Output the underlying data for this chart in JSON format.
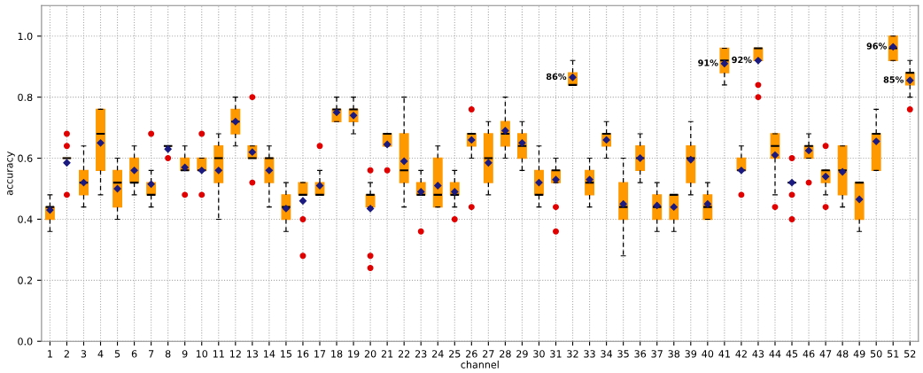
{
  "chart_data": {
    "type": "box",
    "xlabel": "channel",
    "ylabel": "accuracy",
    "categories": [
      "1",
      "2",
      "3",
      "4",
      "5",
      "6",
      "7",
      "8",
      "9",
      "10",
      "11",
      "12",
      "13",
      "14",
      "15",
      "16",
      "17",
      "18",
      "19",
      "20",
      "21",
      "22",
      "23",
      "24",
      "25",
      "26",
      "27",
      "28",
      "29",
      "30",
      "31",
      "32",
      "33",
      "34",
      "35",
      "36",
      "37",
      "38",
      "39",
      "40",
      "41",
      "42",
      "43",
      "44",
      "45",
      "46",
      "47",
      "48",
      "49",
      "50",
      "51",
      "52"
    ],
    "ylim": [
      0,
      1.1
    ],
    "yticks": [
      {
        "value": 0,
        "label": "0.0"
      },
      {
        "value": 0.2,
        "label": "0.2"
      },
      {
        "value": 0.4,
        "label": "0.4"
      },
      {
        "value": 0.6,
        "label": "0.6"
      },
      {
        "value": 0.8,
        "label": "0.8"
      },
      {
        "value": 1.0,
        "label": "1.0"
      }
    ],
    "grid": true,
    "color": "#ff9900",
    "boxes": [
      {
        "low": 0.36,
        "q1": 0.4,
        "median": 0.44,
        "q3": 0.44,
        "high": 0.48,
        "mean": 0.43
      },
      {
        "low": 0.6,
        "q1": 0.6,
        "median": 0.6,
        "q3": 0.6,
        "high": 0.6,
        "mean": 0.585,
        "outliers": [
          0.68,
          0.64,
          0.48
        ]
      },
      {
        "low": 0.44,
        "q1": 0.48,
        "median": 0.52,
        "q3": 0.56,
        "high": 0.64,
        "mean": 0.52
      },
      {
        "low": 0.48,
        "q1": 0.56,
        "median": 0.68,
        "q3": 0.76,
        "high": 0.76,
        "mean": 0.65
      },
      {
        "low": 0.4,
        "q1": 0.44,
        "median": 0.52,
        "q3": 0.56,
        "high": 0.6,
        "mean": 0.5
      },
      {
        "low": 0.48,
        "q1": 0.52,
        "median": 0.52,
        "q3": 0.6,
        "high": 0.64,
        "mean": 0.56
      },
      {
        "low": 0.44,
        "q1": 0.48,
        "median": 0.48,
        "q3": 0.52,
        "high": 0.56,
        "mean": 0.515,
        "outliers": [
          0.68
        ]
      },
      {
        "low": 0.64,
        "q1": 0.64,
        "median": 0.64,
        "q3": 0.64,
        "high": 0.64,
        "mean": 0.63,
        "outliers": [
          0.6
        ]
      },
      {
        "low": 0.56,
        "q1": 0.56,
        "median": 0.56,
        "q3": 0.6,
        "high": 0.64,
        "mean": 0.57,
        "outliers": [
          0.48
        ]
      },
      {
        "low": 0.56,
        "q1": 0.56,
        "median": 0.56,
        "q3": 0.6,
        "high": 0.6,
        "mean": 0.56,
        "outliers": [
          0.68,
          0.48
        ]
      },
      {
        "low": 0.4,
        "q1": 0.52,
        "median": 0.6,
        "q3": 0.64,
        "high": 0.68,
        "mean": 0.56
      },
      {
        "low": 0.64,
        "q1": 0.68,
        "median": 0.72,
        "q3": 0.76,
        "high": 0.8,
        "mean": 0.72
      },
      {
        "low": 0.6,
        "q1": 0.6,
        "median": 0.6,
        "q3": 0.64,
        "high": 0.64,
        "mean": 0.62,
        "outliers": [
          0.8,
          0.52
        ]
      },
      {
        "low": 0.44,
        "q1": 0.52,
        "median": 0.6,
        "q3": 0.6,
        "high": 0.64,
        "mean": 0.56
      },
      {
        "low": 0.36,
        "q1": 0.4,
        "median": 0.44,
        "q3": 0.48,
        "high": 0.52,
        "mean": 0.435
      },
      {
        "low": 0.48,
        "q1": 0.48,
        "median": 0.48,
        "q3": 0.52,
        "high": 0.52,
        "mean": 0.46,
        "outliers": [
          0.4,
          0.28
        ]
      },
      {
        "low": 0.48,
        "q1": 0.48,
        "median": 0.48,
        "q3": 0.52,
        "high": 0.56,
        "mean": 0.51,
        "outliers": [
          0.64
        ]
      },
      {
        "low": 0.72,
        "q1": 0.72,
        "median": 0.76,
        "q3": 0.76,
        "high": 0.8,
        "mean": 0.75
      },
      {
        "low": 0.68,
        "q1": 0.72,
        "median": 0.76,
        "q3": 0.76,
        "high": 0.8,
        "mean": 0.74
      },
      {
        "low": 0.44,
        "q1": 0.44,
        "median": 0.48,
        "q3": 0.48,
        "high": 0.52,
        "mean": 0.435,
        "outliers": [
          0.56,
          0.28,
          0.24
        ]
      },
      {
        "low": 0.64,
        "q1": 0.64,
        "median": 0.68,
        "q3": 0.68,
        "high": 0.68,
        "mean": 0.645,
        "outliers": [
          0.56
        ]
      },
      {
        "low": 0.44,
        "q1": 0.52,
        "median": 0.56,
        "q3": 0.68,
        "high": 0.8,
        "mean": 0.59
      },
      {
        "low": 0.48,
        "q1": 0.48,
        "median": 0.48,
        "q3": 0.52,
        "high": 0.56,
        "mean": 0.49,
        "outliers": [
          0.36
        ]
      },
      {
        "low": 0.44,
        "q1": 0.44,
        "median": 0.48,
        "q3": 0.6,
        "high": 0.64,
        "mean": 0.51
      },
      {
        "low": 0.44,
        "q1": 0.48,
        "median": 0.48,
        "q3": 0.52,
        "high": 0.56,
        "mean": 0.49,
        "outliers": [
          0.4
        ]
      },
      {
        "low": 0.6,
        "q1": 0.64,
        "median": 0.68,
        "q3": 0.68,
        "high": 0.68,
        "mean": 0.66,
        "outliers": [
          0.76,
          0.44
        ]
      },
      {
        "low": 0.48,
        "q1": 0.52,
        "median": 0.6,
        "q3": 0.68,
        "high": 0.72,
        "mean": 0.585
      },
      {
        "low": 0.6,
        "q1": 0.64,
        "median": 0.68,
        "q3": 0.72,
        "high": 0.8,
        "mean": 0.69
      },
      {
        "low": 0.56,
        "q1": 0.6,
        "median": 0.64,
        "q3": 0.68,
        "high": 0.72,
        "mean": 0.65
      },
      {
        "low": 0.44,
        "q1": 0.48,
        "median": 0.48,
        "q3": 0.56,
        "high": 0.64,
        "mean": 0.52
      },
      {
        "low": 0.52,
        "q1": 0.52,
        "median": 0.56,
        "q3": 0.56,
        "high": 0.6,
        "mean": 0.53,
        "outliers": [
          0.44,
          0.36
        ]
      },
      {
        "low": 0.84,
        "q1": 0.84,
        "median": 0.84,
        "q3": 0.88,
        "high": 0.92,
        "mean": 0.865
      },
      {
        "low": 0.44,
        "q1": 0.48,
        "median": 0.52,
        "q3": 0.56,
        "high": 0.6,
        "mean": 0.53
      },
      {
        "low": 0.6,
        "q1": 0.64,
        "median": 0.68,
        "q3": 0.68,
        "high": 0.72,
        "mean": 0.66
      },
      {
        "low": 0.28,
        "q1": 0.4,
        "median": 0.44,
        "q3": 0.52,
        "high": 0.6,
        "mean": 0.45
      },
      {
        "low": 0.52,
        "q1": 0.56,
        "median": 0.6,
        "q3": 0.64,
        "high": 0.68,
        "mean": 0.6
      },
      {
        "low": 0.36,
        "q1": 0.4,
        "median": 0.44,
        "q3": 0.48,
        "high": 0.52,
        "mean": 0.445
      },
      {
        "low": 0.36,
        "q1": 0.4,
        "median": 0.48,
        "q3": 0.48,
        "high": 0.48,
        "mean": 0.44
      },
      {
        "low": 0.48,
        "q1": 0.52,
        "median": 0.6,
        "q3": 0.64,
        "high": 0.72,
        "mean": 0.595
      },
      {
        "low": 0.4,
        "q1": 0.4,
        "median": 0.44,
        "q3": 0.48,
        "high": 0.52,
        "mean": 0.45
      },
      {
        "low": 0.84,
        "q1": 0.88,
        "median": 0.92,
        "q3": 0.96,
        "high": 0.96,
        "mean": 0.91
      },
      {
        "low": 0.56,
        "q1": 0.56,
        "median": 0.56,
        "q3": 0.6,
        "high": 0.64,
        "mean": 0.56,
        "outliers": [
          0.48
        ]
      },
      {
        "low": 0.92,
        "q1": 0.92,
        "median": 0.96,
        "q3": 0.96,
        "high": 0.96,
        "mean": 0.92,
        "outliers": [
          0.84,
          0.8
        ]
      },
      {
        "low": 0.48,
        "q1": 0.6,
        "median": 0.64,
        "q3": 0.68,
        "high": 0.68,
        "mean": 0.61,
        "outliers": [
          0.44
        ]
      },
      {
        "low": 0.52,
        "q1": 0.52,
        "median": 0.52,
        "q3": 0.52,
        "high": 0.52,
        "mean": 0.52,
        "outliers": [
          0.6,
          0.48,
          0.4
        ]
      },
      {
        "low": 0.6,
        "q1": 0.6,
        "median": 0.64,
        "q3": 0.64,
        "high": 0.68,
        "mean": 0.625,
        "outliers": [
          0.52
        ]
      },
      {
        "low": 0.48,
        "q1": 0.52,
        "median": 0.56,
        "q3": 0.56,
        "high": 0.56,
        "mean": 0.54,
        "outliers": [
          0.64,
          0.44
        ]
      },
      {
        "low": 0.44,
        "q1": 0.48,
        "median": 0.56,
        "q3": 0.64,
        "high": 0.64,
        "mean": 0.555
      },
      {
        "low": 0.36,
        "q1": 0.4,
        "median": 0.52,
        "q3": 0.52,
        "high": 0.52,
        "mean": 0.465
      },
      {
        "low": 0.56,
        "q1": 0.56,
        "median": 0.68,
        "q3": 0.68,
        "high": 0.76,
        "mean": 0.655
      },
      {
        "low": 0.92,
        "q1": 0.92,
        "median": 0.96,
        "q3": 1.0,
        "high": 1.0,
        "mean": 0.965
      },
      {
        "low": 0.8,
        "q1": 0.84,
        "median": 0.88,
        "q3": 0.88,
        "high": 0.92,
        "mean": 0.855,
        "outliers": [
          0.76
        ]
      }
    ],
    "annotations": [
      {
        "text": "86%",
        "x": "32",
        "y": 0.865
      },
      {
        "text": "91%",
        "x": "41",
        "y": 0.91
      },
      {
        "text": "92%",
        "x": "43",
        "y": 0.92
      },
      {
        "text": "96%",
        "x": "51",
        "y": 0.965
      },
      {
        "text": "85%",
        "x": "52",
        "y": 0.855
      }
    ]
  }
}
